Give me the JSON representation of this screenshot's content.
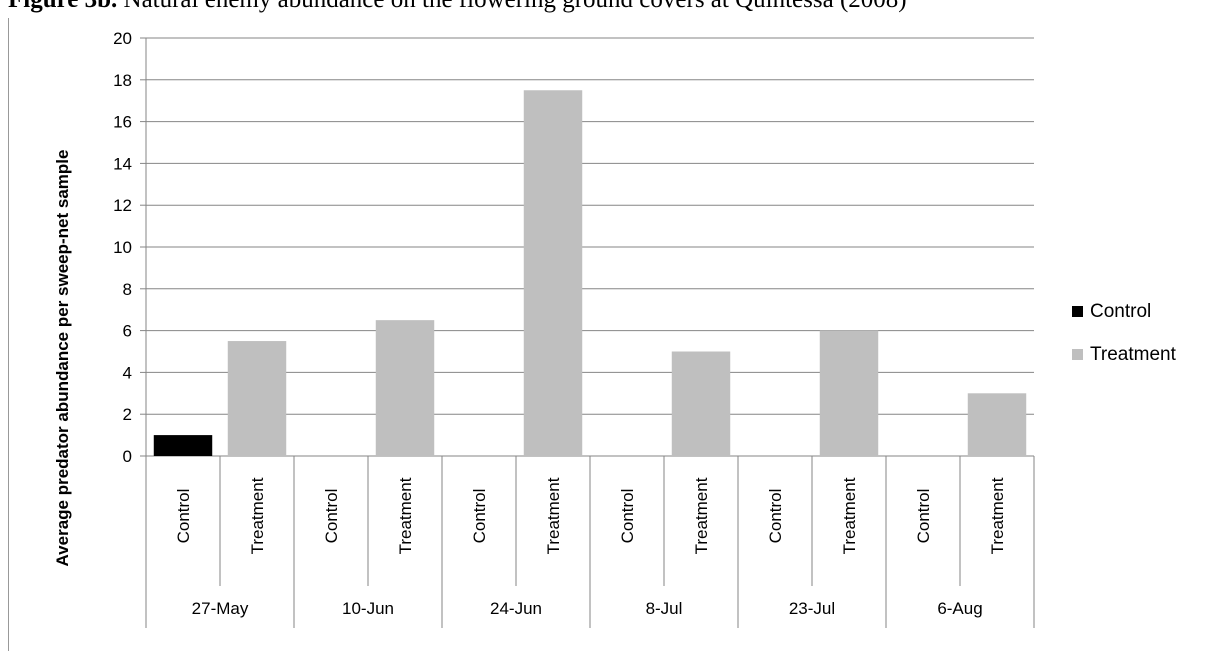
{
  "figure": {
    "caption_label": "Figure 3b.",
    "caption_text": " Natural enemy abundance on the flowering ground covers at Quintessa (2008)"
  },
  "chart_data": {
    "type": "bar",
    "ylabel": "Average predator abundance per sweep-net sample",
    "ylim": [
      0,
      20
    ],
    "yticks": [
      0,
      2,
      4,
      6,
      8,
      10,
      12,
      14,
      16,
      18,
      20
    ],
    "grid": true,
    "legend_position": "right",
    "groups": [
      {
        "date": "27-May",
        "bars": [
          {
            "label": "Control",
            "series": "Control",
            "value": 1
          },
          {
            "label": "Treatment",
            "series": "Treatment",
            "value": 5.5
          }
        ]
      },
      {
        "date": "10-Jun",
        "bars": [
          {
            "label": "Control",
            "series": "Control",
            "value": 0
          },
          {
            "label": "Treatment",
            "series": "Treatment",
            "value": 6.5
          }
        ]
      },
      {
        "date": "24-Jun",
        "bars": [
          {
            "label": "Control",
            "series": "Control",
            "value": 0
          },
          {
            "label": "Treatment",
            "series": "Treatment",
            "value": 17.5
          }
        ]
      },
      {
        "date": "8-Jul",
        "bars": [
          {
            "label": "Control",
            "series": "Control",
            "value": 0
          },
          {
            "label": "Treatment",
            "series": "Treatment",
            "value": 5
          }
        ]
      },
      {
        "date": "23-Jul",
        "bars": [
          {
            "label": "Control",
            "series": "Control",
            "value": 0
          },
          {
            "label": "Treatment",
            "series": "Treatment",
            "value": 6
          }
        ]
      },
      {
        "date": "6-Aug",
        "bars": [
          {
            "label": "Control",
            "series": "Control",
            "value": 0
          },
          {
            "label": "Treatment",
            "series": "Treatment",
            "value": 3
          }
        ]
      }
    ],
    "legend": [
      {
        "name": "Control",
        "color": "#000000"
      },
      {
        "name": "Treatment",
        "color": "#bfbfbf"
      }
    ]
  }
}
